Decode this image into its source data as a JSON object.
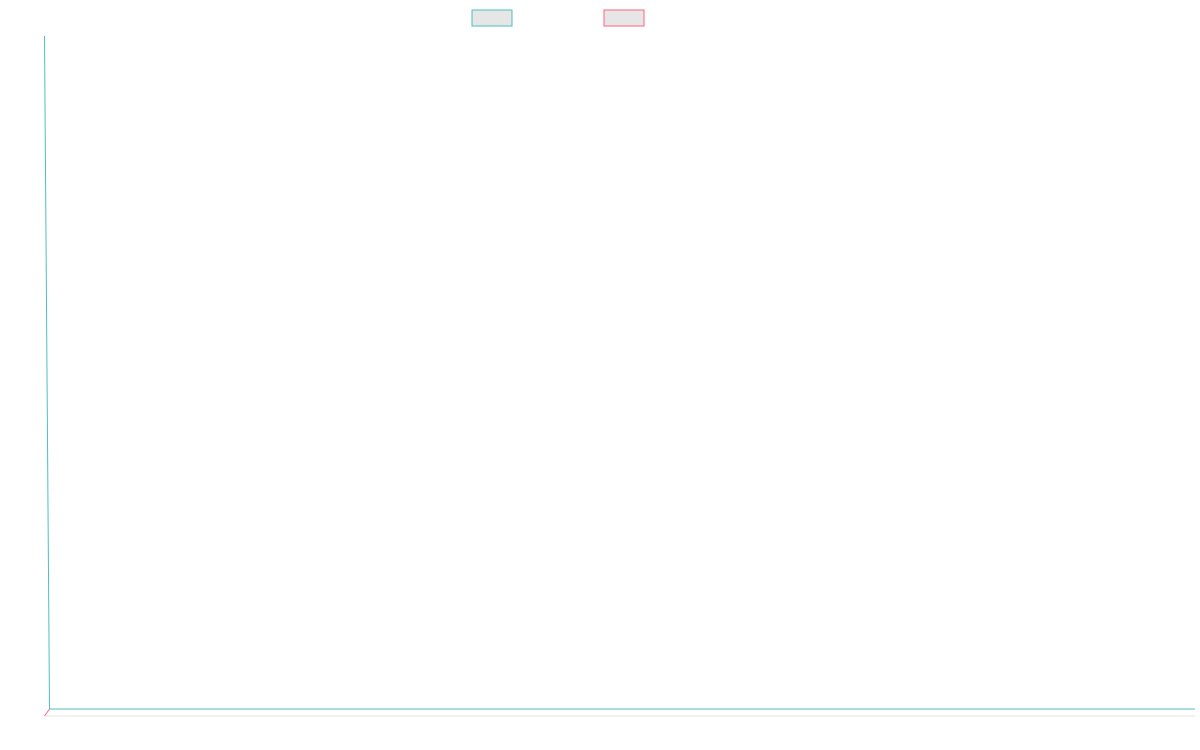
{
  "chart_data": {
    "type": "line",
    "title": "",
    "xlabel": "",
    "ylabel": "",
    "legend": {
      "placement": "top-center",
      "entries": [
        {
          "color": "#4BC0C0",
          "fill": "#E6E6E6"
        },
        {
          "color": "#FF6384",
          "fill": "#E6E6E6"
        }
      ]
    },
    "grid": false,
    "x": [],
    "series": [
      {
        "color": "#4BC0C0",
        "values": []
      },
      {
        "color": "#FF6384",
        "values": []
      }
    ]
  },
  "colors": {
    "series_1": "#4BC0C0",
    "series_2": "#FF6384",
    "outer_axis": "#E6E6E6",
    "swatch_fill": "#E6E6E6"
  }
}
